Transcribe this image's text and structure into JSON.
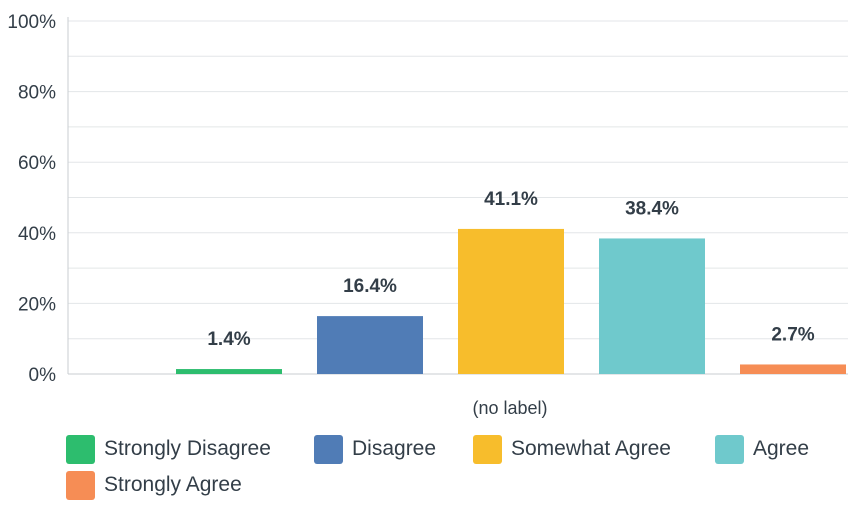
{
  "chart_data": {
    "type": "bar",
    "categories": [
      "Strongly Disagree",
      "Disagree",
      "Somewhat Agree",
      "Agree",
      "Strongly Agree"
    ],
    "values": [
      1.4,
      16.4,
      41.1,
      38.4,
      2.7
    ],
    "value_labels": [
      "1.4%",
      "16.4%",
      "41.1%",
      "38.4%",
      "2.7%"
    ],
    "colors": [
      "#2dbd6e",
      "#507cb6",
      "#f7bd2c",
      "#6fc9cc",
      "#f68d55"
    ],
    "xlabel": "(no label)",
    "ylabel": "",
    "ylim": [
      0,
      100
    ],
    "yticks": [
      0,
      20,
      40,
      60,
      80,
      100
    ],
    "ytick_labels": [
      "0%",
      "20%",
      "40%",
      "60%",
      "80%",
      "100%"
    ],
    "grid": true,
    "legend_position": "bottom"
  }
}
